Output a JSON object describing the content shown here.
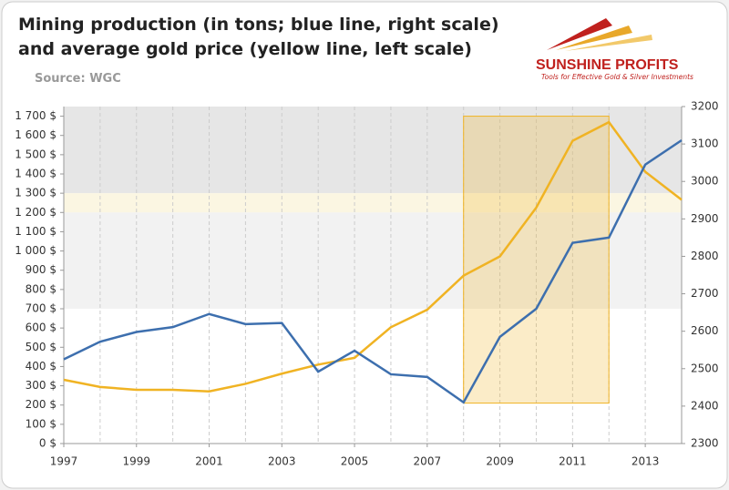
{
  "chart_data": {
    "type": "line",
    "title": "Mining production (in tons;  blue line, right scale)",
    "subtitle": "and average gold price (yellow line, left scale)",
    "source": "Source: WGC",
    "logo": "SUNSHINE PROFITS",
    "logo_tagline": "Tools for Effective Gold & Silver Investments",
    "x": [
      1997,
      1998,
      1999,
      2000,
      2001,
      2002,
      2003,
      2004,
      2005,
      2006,
      2007,
      2008,
      2009,
      2010,
      2011,
      2012,
      2013,
      2014
    ],
    "series": [
      {
        "name": "Average gold price",
        "color": "#f0b323",
        "axis": "y",
        "values": [
          331,
          294,
          279,
          279,
          271,
          310,
          363,
          410,
          445,
          604,
          695,
          872,
          972,
          1225,
          1572,
          1669,
          1411,
          1266
        ]
      },
      {
        "name": "Mining production",
        "color": "#3d6fae",
        "axis": "y2",
        "values": [
          2525,
          2572,
          2598,
          2611,
          2646,
          2619,
          2622,
          2492,
          2548,
          2485,
          2478,
          2410,
          2585,
          2660,
          2836,
          2850,
          3045,
          3110
        ]
      }
    ],
    "xlim": [
      1997,
      2014
    ],
    "xticks": [
      1997,
      1999,
      2001,
      2003,
      2005,
      2007,
      2009,
      2011,
      2013
    ],
    "ylim": [
      0,
      1750
    ],
    "yticks": [
      {
        "value": 0,
        "label": "0 $"
      },
      {
        "value": 100,
        "label": "100 $"
      },
      {
        "value": 200,
        "label": "200 $"
      },
      {
        "value": 300,
        "label": "300 $"
      },
      {
        "value": 400,
        "label": "400 $"
      },
      {
        "value": 500,
        "label": "500 $"
      },
      {
        "value": 600,
        "label": "600 $"
      },
      {
        "value": 700,
        "label": "700 $"
      },
      {
        "value": 800,
        "label": "800 $"
      },
      {
        "value": 900,
        "label": "900 $"
      },
      {
        "value": 1000,
        "label": "1 000 $"
      },
      {
        "value": 1100,
        "label": "1 100 $"
      },
      {
        "value": 1200,
        "label": "1 200 $"
      },
      {
        "value": 1300,
        "label": "1 300 $"
      },
      {
        "value": 1400,
        "label": "1 400 $"
      },
      {
        "value": 1500,
        "label": "1 500 $"
      },
      {
        "value": 1600,
        "label": "1 600 $"
      },
      {
        "value": 1700,
        "label": "1 700 $"
      }
    ],
    "y2lim": [
      2300,
      3200
    ],
    "y2ticks": [
      2300,
      2400,
      2500,
      2600,
      2700,
      2800,
      2900,
      3000,
      3100,
      3200
    ],
    "bands": [
      {
        "from": 1300,
        "to": 1750,
        "color": "#e6e6e6"
      },
      {
        "from": 1200,
        "to": 1300,
        "color": "#fbf6e2"
      },
      {
        "from": 700,
        "to": 1200,
        "color": "#f2f2f2"
      }
    ],
    "highlight": {
      "x": [
        2008,
        2012
      ],
      "y": [
        210,
        1700
      ],
      "color": "#f0b323"
    },
    "vgrid": true
  }
}
